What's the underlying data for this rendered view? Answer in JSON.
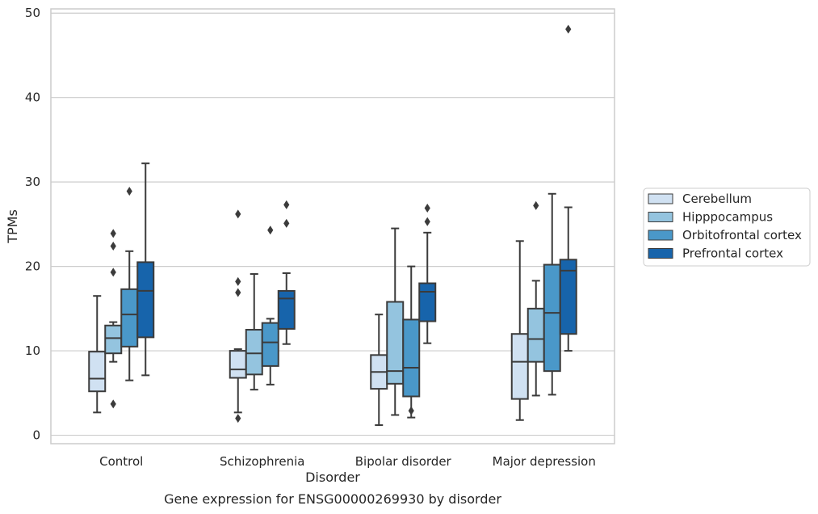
{
  "chart_data": {
    "type": "box",
    "caption": "Gene expression for ENSG00000269930 by disorder",
    "xlabel": "Disorder",
    "ylabel": "TPMs",
    "ylim": [
      -1,
      50.5
    ],
    "yticks": [
      0,
      10,
      20,
      30,
      40,
      50
    ],
    "grid": "horizontal",
    "legend_position": "right",
    "categories": [
      "Control",
      "Schizophrenia",
      "Bipolar disorder",
      "Major depression"
    ],
    "colors": {
      "Cerebellum": "#d0e1f2",
      "Hipppocampus": "#94c4df",
      "Orbitofrontal cortex": "#4a98c9",
      "Prefrontal cortex": "#1764ab",
      "edge": "#3b3b3b",
      "grid": "#cccccc"
    },
    "series": [
      {
        "name": "Cerebellum",
        "boxes": [
          {
            "whislo": 2.7,
            "q1": 5.2,
            "med": 6.7,
            "q3": 9.9,
            "whishi": 16.5,
            "fliers": []
          },
          {
            "whislo": 2.7,
            "q1": 6.8,
            "med": 7.8,
            "q3": 10.0,
            "whishi": 10.2,
            "fliers": [
              26.2,
              18.2,
              16.9,
              2.0
            ]
          },
          {
            "whislo": 1.2,
            "q1": 5.5,
            "med": 7.5,
            "q3": 9.5,
            "whishi": 14.3,
            "fliers": []
          },
          {
            "whislo": 1.8,
            "q1": 4.3,
            "med": 8.7,
            "q3": 12.0,
            "whishi": 23.0,
            "fliers": []
          }
        ]
      },
      {
        "name": "Hipppocampus",
        "boxes": [
          {
            "whislo": 8.7,
            "q1": 9.7,
            "med": 11.5,
            "q3": 13.0,
            "whishi": 13.4,
            "fliers": [
              23.9,
              22.4,
              19.3,
              3.7
            ]
          },
          {
            "whislo": 5.4,
            "q1": 7.2,
            "med": 9.7,
            "q3": 12.5,
            "whishi": 19.1,
            "fliers": []
          },
          {
            "whislo": 2.4,
            "q1": 6.1,
            "med": 7.6,
            "q3": 15.8,
            "whishi": 24.5,
            "fliers": []
          },
          {
            "whislo": 4.7,
            "q1": 8.7,
            "med": 11.4,
            "q3": 15.0,
            "whishi": 18.3,
            "fliers": [
              27.2
            ]
          }
        ]
      },
      {
        "name": "Orbitofrontal cortex",
        "boxes": [
          {
            "whislo": 6.5,
            "q1": 10.5,
            "med": 14.3,
            "q3": 17.3,
            "whishi": 21.8,
            "fliers": [
              28.9
            ]
          },
          {
            "whislo": 6.0,
            "q1": 8.2,
            "med": 11.0,
            "q3": 13.3,
            "whishi": 13.8,
            "fliers": [
              24.3
            ]
          },
          {
            "whislo": 2.1,
            "q1": 4.6,
            "med": 8.0,
            "q3": 13.7,
            "whishi": 20.0,
            "fliers": [
              2.9
            ]
          },
          {
            "whislo": 4.8,
            "q1": 7.6,
            "med": 14.5,
            "q3": 20.2,
            "whishi": 28.6,
            "fliers": []
          }
        ]
      },
      {
        "name": "Prefrontal cortex",
        "boxes": [
          {
            "whislo": 7.1,
            "q1": 11.6,
            "med": 17.1,
            "q3": 20.5,
            "whishi": 32.2,
            "fliers": []
          },
          {
            "whislo": 10.8,
            "q1": 12.6,
            "med": 16.2,
            "q3": 17.1,
            "whishi": 19.2,
            "fliers": [
              27.3,
              25.1
            ]
          },
          {
            "whislo": 10.9,
            "q1": 13.5,
            "med": 17.0,
            "q3": 18.0,
            "whishi": 24.0,
            "fliers": [
              26.9,
              25.3
            ]
          },
          {
            "whislo": 10.0,
            "q1": 12.0,
            "med": 19.5,
            "q3": 20.8,
            "whishi": 27.0,
            "fliers": [
              48.1
            ]
          }
        ]
      }
    ]
  }
}
